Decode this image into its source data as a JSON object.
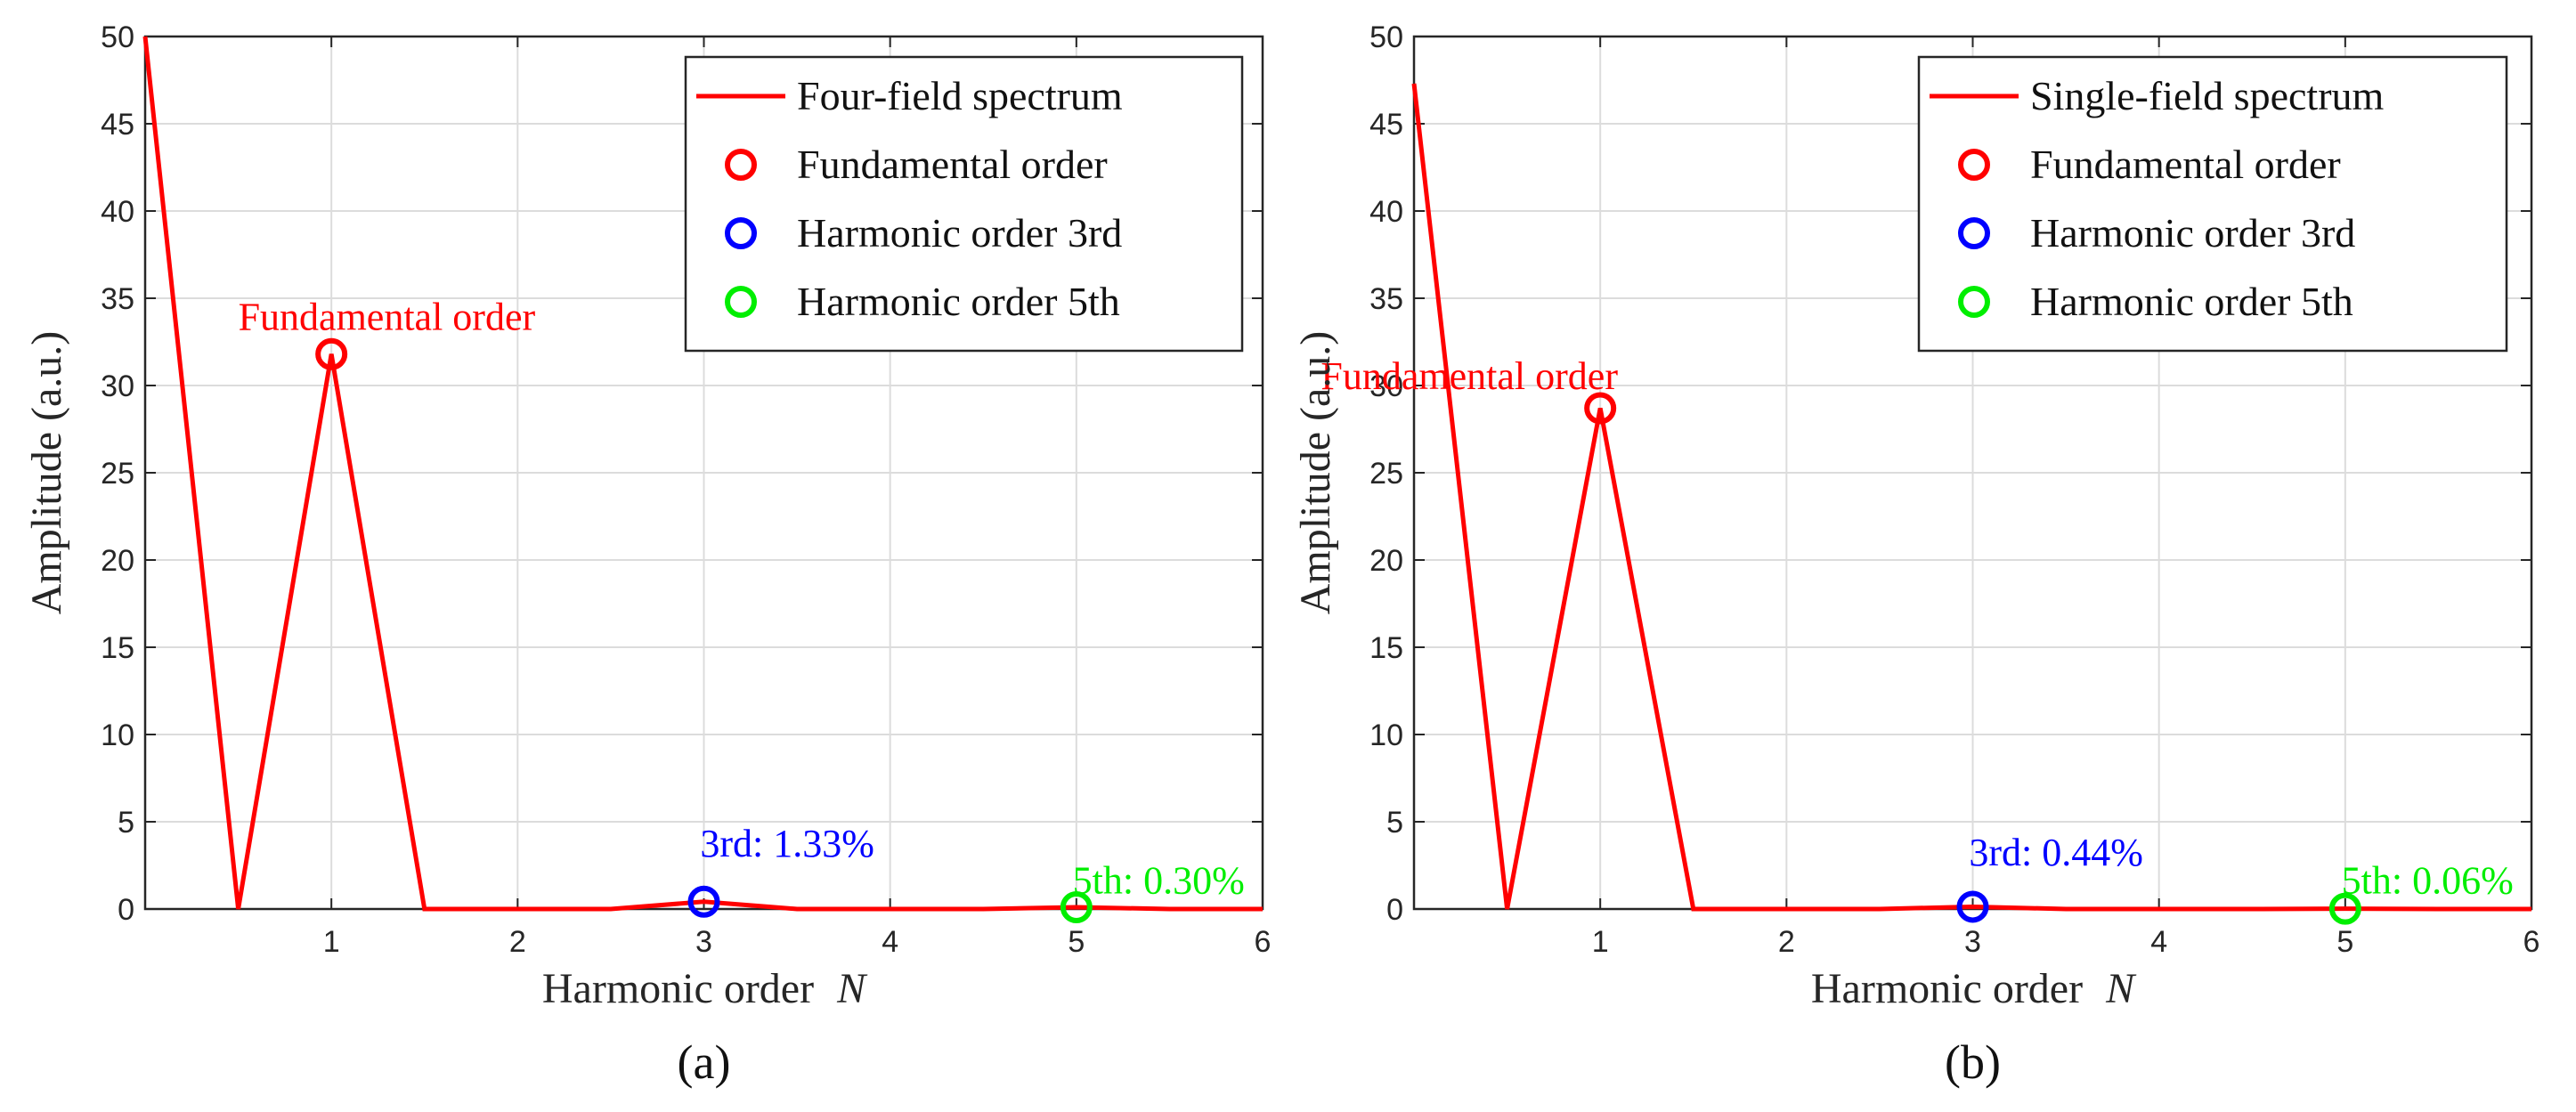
{
  "chart_data": [
    {
      "type": "line",
      "panel_label": "(a)",
      "xlabel_text": "Harmonic order",
      "xlabel_var": "N",
      "ylabel": "Amplitude (a.u.)",
      "xlim": [
        0,
        6
      ],
      "ylim": [
        0,
        50
      ],
      "xticks": [
        1,
        2,
        3,
        4,
        5,
        6
      ],
      "yticks": [
        0,
        5,
        10,
        15,
        20,
        25,
        30,
        35,
        40,
        45,
        50
      ],
      "grid": true,
      "legend_position": "top-right",
      "series": [
        {
          "name": "Four-field spectrum",
          "color": "#ff0000",
          "x": [
            0,
            0.5,
            1,
            1.5,
            2,
            2.5,
            3,
            3.5,
            4,
            4.5,
            5,
            5.5,
            6
          ],
          "y": [
            50,
            0,
            31.8,
            0,
            0,
            0,
            0.42,
            0,
            0,
            0,
            0.1,
            0,
            0
          ]
        }
      ],
      "markers": [
        {
          "name": "Fundamental order",
          "color": "#ff0000",
          "x": 1,
          "y": 31.8
        },
        {
          "name": "Harmonic order 3rd",
          "color": "#0000ff",
          "x": 3,
          "y": 0.42
        },
        {
          "name": "Harmonic order 5th",
          "color": "#00ee00",
          "x": 5,
          "y": 0.1
        }
      ],
      "annotations": [
        {
          "text": "Fundamental order",
          "color": "#ff0000",
          "x": 0.5,
          "y": 33.2
        },
        {
          "text": "3rd: 1.33%",
          "color": "#0000ff",
          "x": 2.98,
          "y": 3.0
        },
        {
          "text": "5th: 0.30%",
          "color": "#00ee00",
          "x": 4.98,
          "y": 0.9
        }
      ]
    },
    {
      "type": "line",
      "panel_label": "(b)",
      "xlabel_text": "Harmonic order",
      "xlabel_var": "N",
      "ylabel": "Amplitude (a.u.)",
      "xlim": [
        0,
        6
      ],
      "ylim": [
        0,
        50
      ],
      "xticks": [
        1,
        2,
        3,
        4,
        5,
        6
      ],
      "yticks": [
        0,
        5,
        10,
        15,
        20,
        25,
        30,
        35,
        40,
        45,
        50
      ],
      "grid": true,
      "legend_position": "top-right",
      "series": [
        {
          "name": "Single-field spectrum",
          "color": "#ff0000",
          "x": [
            0,
            0.5,
            1,
            1.5,
            2,
            2.5,
            3,
            3.5,
            4,
            4.5,
            5,
            5.5,
            6
          ],
          "y": [
            47.3,
            0,
            28.7,
            0,
            0,
            0,
            0.13,
            0,
            0,
            0,
            0.02,
            0,
            0
          ]
        }
      ],
      "markers": [
        {
          "name": "Fundamental order",
          "color": "#ff0000",
          "x": 1,
          "y": 28.7
        },
        {
          "name": "Harmonic order 3rd",
          "color": "#0000ff",
          "x": 3,
          "y": 0.13
        },
        {
          "name": "Harmonic order 5th",
          "color": "#00ee00",
          "x": 5,
          "y": 0.02
        }
      ],
      "annotations": [
        {
          "text": "Fundamental order",
          "color": "#ff0000",
          "x": -0.5,
          "y": 29.8
        },
        {
          "text": "3rd: 0.44%",
          "color": "#0000ff",
          "x": 2.98,
          "y": 2.5
        },
        {
          "text": "5th: 0.06%",
          "color": "#00ee00",
          "x": 4.98,
          "y": 0.9
        }
      ]
    }
  ]
}
